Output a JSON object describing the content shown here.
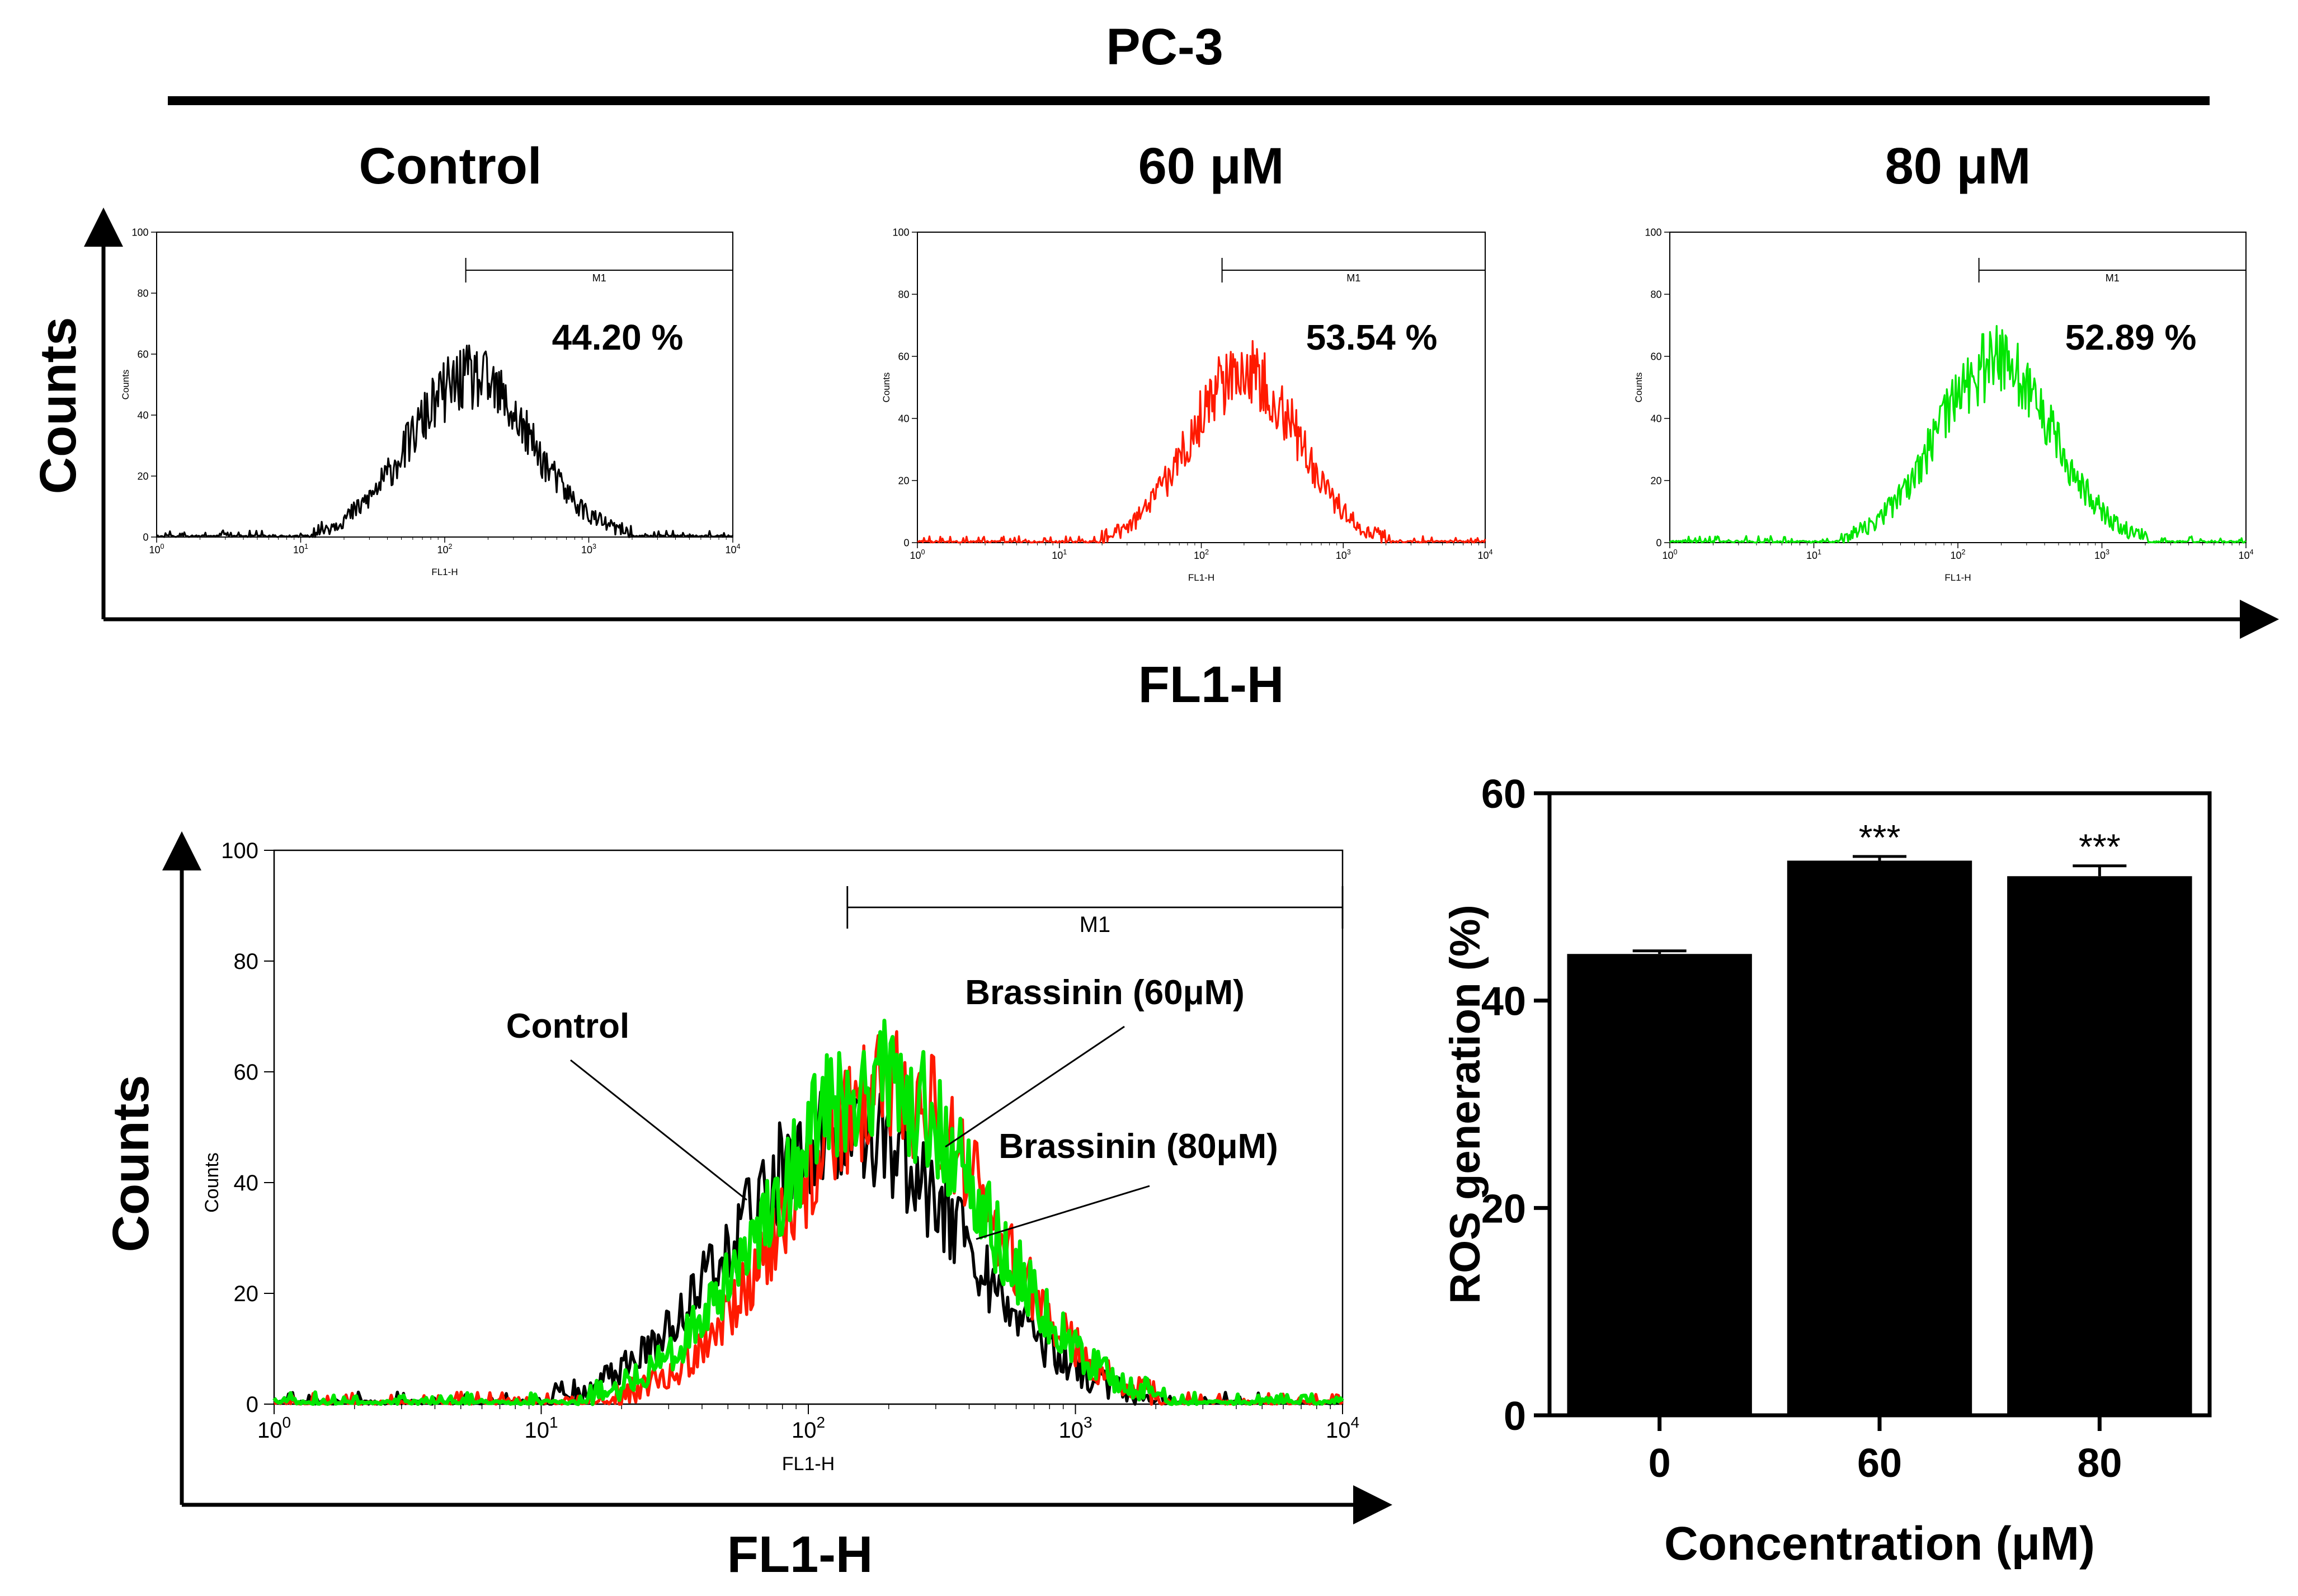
{
  "figure": {
    "cell_line": "PC-3",
    "top_ylabel": "Counts",
    "top_xlabel": "FL1-H",
    "colors": {
      "control": "#000000",
      "dose60": "#ff1a00",
      "dose80": "#00e600",
      "bar": "#000000"
    }
  },
  "chart_data": [
    {
      "type": "histogram",
      "panel": "Control",
      "title": "Control",
      "percent_label": "44.20 %",
      "color": "#000000",
      "xscale": "log",
      "xlim": [
        1,
        10000
      ],
      "ylim": [
        0,
        100
      ],
      "yticks": [
        0,
        20,
        40,
        60,
        80,
        100
      ],
      "xtick_labels": [
        "10",
        "10",
        "10",
        "10",
        "10"
      ],
      "xtick_exps": [
        "0",
        "1",
        "2",
        "3",
        "4"
      ],
      "xlabel": "FL1-H",
      "ylabel": "Counts",
      "gate": {
        "label": "M1",
        "from": 140,
        "to": 10000
      },
      "peak": {
        "x": 150,
        "y": 52,
        "log_sd": 0.42
      }
    },
    {
      "type": "histogram",
      "panel": "60 uM",
      "title": "60 μM",
      "percent_label": "53.54 %",
      "color": "#ff1a00",
      "xscale": "log",
      "xlim": [
        1,
        10000
      ],
      "ylim": [
        0,
        100
      ],
      "yticks": [
        0,
        20,
        40,
        60,
        80,
        100
      ],
      "xtick_labels": [
        "10",
        "10",
        "10",
        "10",
        "10"
      ],
      "xtick_exps": [
        "0",
        "1",
        "2",
        "3",
        "4"
      ],
      "xlabel": "FL1-H",
      "ylabel": "Counts",
      "gate": {
        "label": "M1",
        "from": 140,
        "to": 10000
      },
      "peak": {
        "x": 200,
        "y": 56,
        "log_sd": 0.38
      }
    },
    {
      "type": "histogram",
      "panel": "80 uM",
      "title": "80 μM",
      "percent_label": "52.89 %",
      "color": "#00e600",
      "xscale": "log",
      "xlim": [
        1,
        10000
      ],
      "ylim": [
        0,
        100
      ],
      "yticks": [
        0,
        20,
        40,
        60,
        80,
        100
      ],
      "xtick_labels": [
        "10",
        "10",
        "10",
        "10",
        "10"
      ],
      "xtick_exps": [
        "0",
        "1",
        "2",
        "3",
        "4"
      ],
      "xlabel": "FL1-H",
      "ylabel": "Counts",
      "gate": {
        "label": "M1",
        "from": 140,
        "to": 10000
      },
      "peak": {
        "x": 180,
        "y": 58,
        "log_sd": 0.4
      }
    },
    {
      "type": "histogram_overlay",
      "panel": "overlay",
      "xscale": "log",
      "xlim": [
        1,
        10000
      ],
      "ylim": [
        0,
        100
      ],
      "yticks": [
        0,
        20,
        40,
        60,
        80,
        100
      ],
      "xtick_labels": [
        "10",
        "10",
        "10",
        "10",
        "10"
      ],
      "xtick_exps": [
        "0",
        "1",
        "2",
        "3",
        "4"
      ],
      "xlabel": "FL1-H",
      "ylabel": "Counts",
      "inner_ylabel": "Counts",
      "gate": {
        "label": "M1",
        "from": 140,
        "to": 10000
      },
      "series": [
        {
          "name": "Control",
          "color": "#000000",
          "peak": {
            "x": 140,
            "y": 50,
            "log_sd": 0.42
          }
        },
        {
          "name": "Brassinin (60μM)",
          "color": "#ff1a00",
          "peak": {
            "x": 200,
            "y": 57,
            "log_sd": 0.38
          }
        },
        {
          "name": "Brassinin (80μM)",
          "color": "#00e600",
          "peak": {
            "x": 180,
            "y": 58,
            "log_sd": 0.4
          }
        }
      ],
      "annotations": {
        "control": "Control",
        "b60": "Brassinin (60μM)",
        "b80": "Brassinin (80μM)"
      }
    },
    {
      "type": "bar",
      "title": "",
      "xlabel": "Concentration (μM)",
      "ylabel": "ROS generation (%)",
      "categories": [
        "0",
        "60",
        "80"
      ],
      "values": [
        44.5,
        53.5,
        52.0
      ],
      "errors": [
        0.3,
        0.4,
        1.0
      ],
      "significance": [
        "",
        "***",
        "***"
      ],
      "ylim": [
        0,
        60
      ],
      "yticks": [
        0,
        20,
        40,
        60
      ],
      "color": "#000000"
    }
  ]
}
